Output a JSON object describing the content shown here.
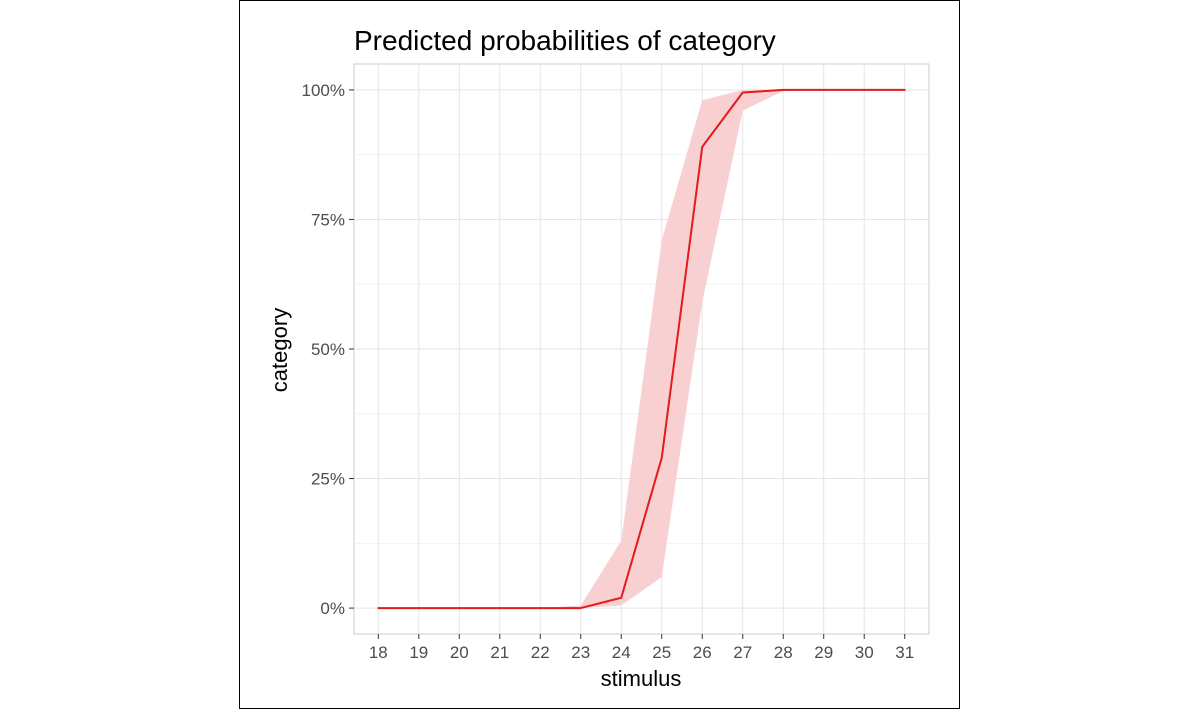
{
  "chart_data": {
    "type": "line",
    "title": "Predicted probabilities of category",
    "xlabel": "stimulus",
    "ylabel": "category",
    "xlim": [
      17.4,
      31.6
    ],
    "ylim": [
      -0.05,
      1.05
    ],
    "x_ticks": [
      18,
      19,
      20,
      21,
      22,
      23,
      24,
      25,
      26,
      27,
      28,
      29,
      30,
      31
    ],
    "x_tick_labels": [
      "18",
      "19",
      "20",
      "21",
      "22",
      "23",
      "24",
      "25",
      "26",
      "27",
      "28",
      "29",
      "30",
      "31"
    ],
    "y_ticks": [
      0,
      0.25,
      0.5,
      0.75,
      1.0
    ],
    "y_tick_labels": [
      "0%",
      "25%",
      "50%",
      "75%",
      "100%"
    ],
    "grid": true,
    "legend": "none",
    "line_color": "#e41a1c",
    "ribbon_color": "#f8d0d2",
    "series": [
      {
        "x": [
          18,
          19,
          20,
          21,
          22,
          23,
          24,
          25,
          26,
          27,
          28,
          29,
          30,
          31
        ],
        "y": [
          0,
          0,
          0,
          0,
          0,
          0,
          0.02,
          0.29,
          0.89,
          0.995,
          1.0,
          1.0,
          1.0,
          1.0
        ],
        "lower": [
          0,
          0,
          0,
          0,
          0,
          0,
          0.005,
          0.06,
          0.59,
          0.96,
          0.998,
          1.0,
          1.0,
          1.0
        ],
        "upper": [
          0,
          0,
          0,
          0,
          0,
          0.005,
          0.13,
          0.71,
          0.98,
          1.0,
          1.0,
          1.0,
          1.0,
          1.0
        ]
      }
    ]
  }
}
